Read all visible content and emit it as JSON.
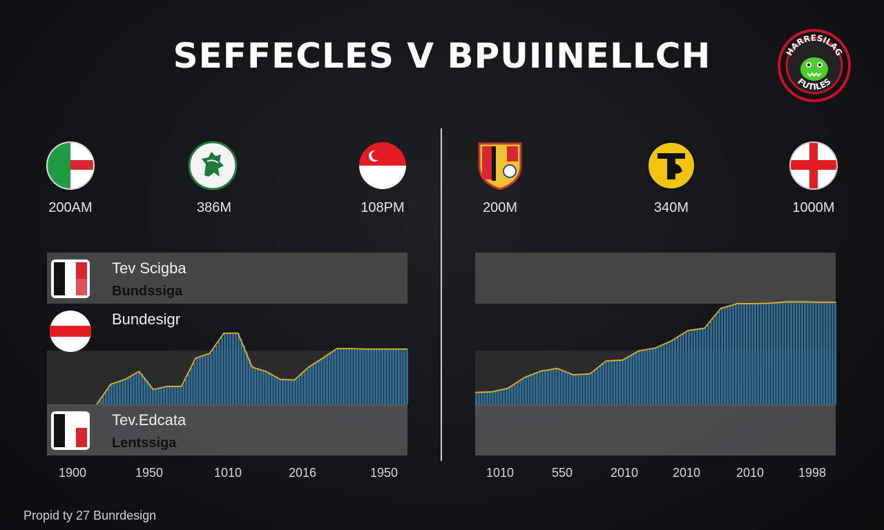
{
  "header": {
    "title": "SEFFECLES V BPUIINELLCH"
  },
  "logo": {
    "top_text": "HARRESILAG",
    "bottom_text": "FUTILES",
    "icon": "monster-badge-icon"
  },
  "left_panel": {
    "crests": [
      {
        "icon": "green-red-flag-crest-icon",
        "value": "200AM"
      },
      {
        "icon": "green-lion-crest-icon",
        "value": "386M"
      },
      {
        "icon": "red-white-crescent-crest-icon",
        "value": "108PM"
      }
    ],
    "legend": [
      {
        "title": "Tev Scigba",
        "subtitle": "Bundssiga"
      },
      {
        "title": "Bundesigr",
        "subtitle": ""
      },
      {
        "title": "Tev.Edcata",
        "subtitle": "Lentssiga"
      }
    ]
  },
  "right_panel": {
    "crests": [
      {
        "icon": "red-gold-shield-crest-icon",
        "value": "200M"
      },
      {
        "icon": "yellow-black-monogram-crest-icon",
        "value": "340M"
      },
      {
        "icon": "red-cross-flag-crest-icon",
        "value": "1000M"
      }
    ]
  },
  "footer": {
    "text": "Propid ty 27 Bunrdesign"
  },
  "colors": {
    "fill": "#2f6e93",
    "line": "#d4a83a",
    "band": "#4a4a4a"
  },
  "chart_data": [
    {
      "type": "area",
      "title": "",
      "tick_labels": [
        "1900",
        "1950",
        "1010",
        "2016",
        "1950"
      ],
      "x": [
        0,
        1,
        2,
        3,
        4,
        5,
        6,
        7,
        8,
        9,
        10,
        11,
        12,
        13,
        14,
        15,
        16,
        17,
        18,
        19,
        20,
        21,
        22
      ],
      "values": [
        0,
        38,
        47,
        62,
        28,
        34,
        34,
        87,
        96,
        134,
        134,
        70,
        62,
        47,
        46,
        70,
        87,
        105,
        105,
        104,
        104,
        104,
        104
      ],
      "ylim": [
        0,
        200
      ],
      "grid": false
    },
    {
      "type": "area",
      "title": "",
      "tick_labels": [
        "1010",
        "550",
        "2010",
        "2010",
        "2010",
        "1998"
      ],
      "x": [
        0,
        1,
        2,
        3,
        4,
        5,
        6,
        7,
        8,
        9,
        10,
        11,
        12,
        13,
        14,
        15,
        16,
        17,
        18,
        19,
        20,
        21,
        22
      ],
      "values": [
        26,
        27,
        35,
        58,
        72,
        78,
        64,
        66,
        94,
        96,
        116,
        122,
        138,
        160,
        165,
        208,
        218,
        218,
        219,
        222,
        222,
        221,
        221
      ],
      "ylim": [
        0,
        230
      ],
      "grid": false
    }
  ]
}
